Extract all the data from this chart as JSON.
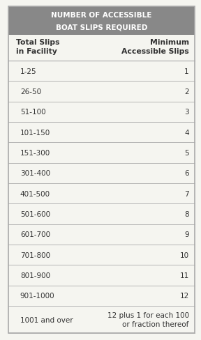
{
  "title_line1": "NUMBER OF ACCESSIBLE",
  "title_line2": "BOAT SLIPS REQUIRED",
  "title_bg": "#888888",
  "title_text_color": "#ffffff",
  "header_col1": "Total Slips\nin Facility",
  "header_col2": "Minimum\nAccessible Slips",
  "rows": [
    [
      "1-25",
      "1"
    ],
    [
      "26-50",
      "2"
    ],
    [
      "51-100",
      "3"
    ],
    [
      "101-150",
      "4"
    ],
    [
      "151-300",
      "5"
    ],
    [
      "301-400",
      "6"
    ],
    [
      "401-500",
      "7"
    ],
    [
      "501-600",
      "8"
    ],
    [
      "601-700",
      "9"
    ],
    [
      "701-800",
      "10"
    ],
    [
      "801-900",
      "11"
    ],
    [
      "901-1000",
      "12"
    ],
    [
      "1001 and over",
      "12 plus 1 for each 100\nor fraction thereof"
    ]
  ],
  "bg_color": "#f5f5f0",
  "line_color": "#aaaaaa",
  "text_color": "#333333",
  "outer_border_color": "#aaaaaa",
  "figsize": [
    2.88,
    4.89
  ],
  "dpi": 100
}
